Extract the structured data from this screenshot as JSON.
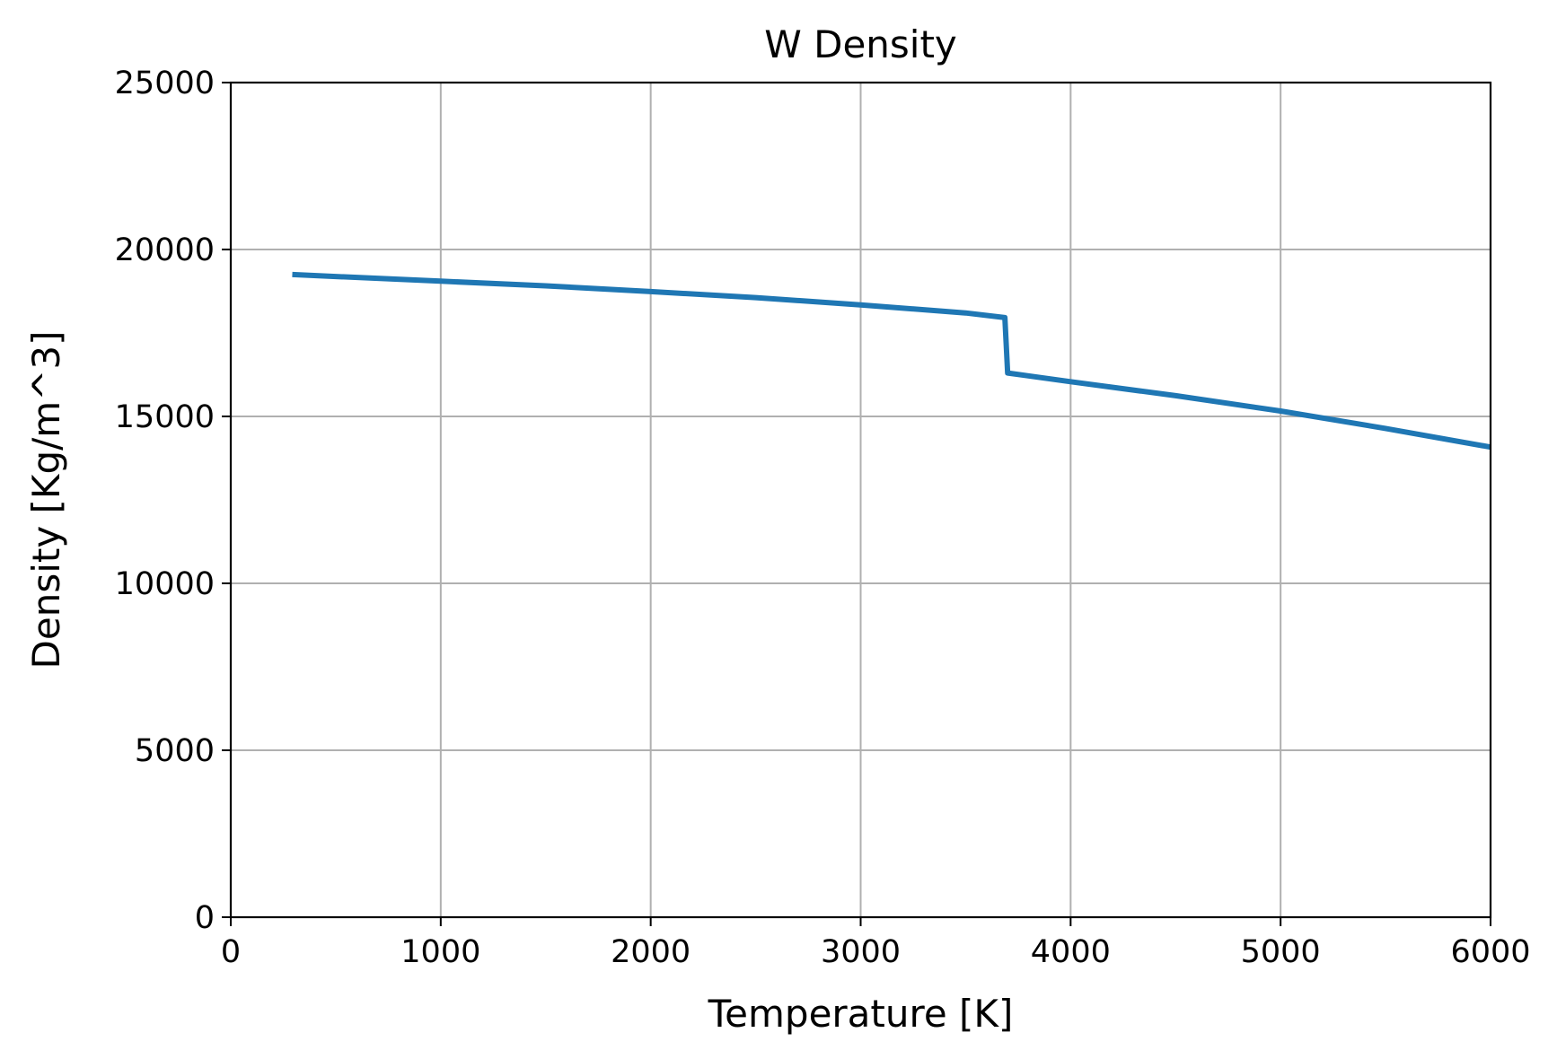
{
  "chart_data": {
    "type": "line",
    "title": "W Density",
    "xlabel": "Temperature [K]",
    "ylabel": "Density [Kg/m^3]",
    "xlim": [
      0,
      6000
    ],
    "ylim": [
      0,
      25000
    ],
    "xticks": [
      "0",
      "1000",
      "2000",
      "3000",
      "4000",
      "5000",
      "6000"
    ],
    "yticks": [
      "0",
      "5000",
      "10000",
      "15000",
      "20000",
      "25000"
    ],
    "grid": true,
    "series": [
      {
        "color": "#1f77b4",
        "x": [
          293,
          500,
          1000,
          1500,
          2000,
          2500,
          3000,
          3500,
          3687,
          3700,
          4000,
          4500,
          5000,
          5500,
          6000
        ],
        "y": [
          19250,
          19190,
          19050,
          18910,
          18740,
          18560,
          18340,
          18100,
          17960,
          16300,
          16040,
          15620,
          15160,
          14640,
          14080
        ]
      }
    ]
  }
}
